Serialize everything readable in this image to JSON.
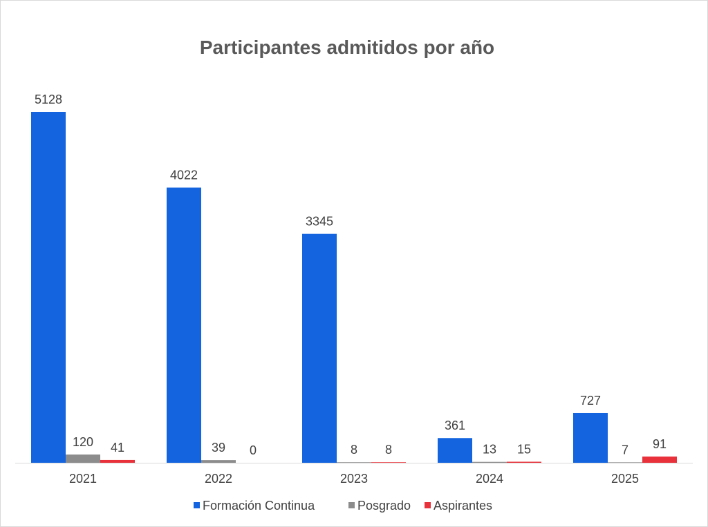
{
  "chart_data": {
    "type": "bar",
    "title": "Participantes admitidos por año",
    "categories": [
      "2021",
      "2022",
      "2023",
      "2024",
      "2025"
    ],
    "series": [
      {
        "name": "Formación Continua",
        "color": "#1464e0",
        "values": [
          5128,
          4022,
          3345,
          361,
          727
        ]
      },
      {
        "name": "Posgrado",
        "color": "#8c8c8c",
        "values": [
          120,
          39,
          8,
          13,
          7
        ]
      },
      {
        "name": "Aspirantes",
        "color": "#e8313a",
        "values": [
          41,
          0,
          8,
          15,
          91
        ]
      }
    ],
    "ylim": [
      0,
      5128
    ],
    "grid": false,
    "legend_position": "bottom"
  }
}
